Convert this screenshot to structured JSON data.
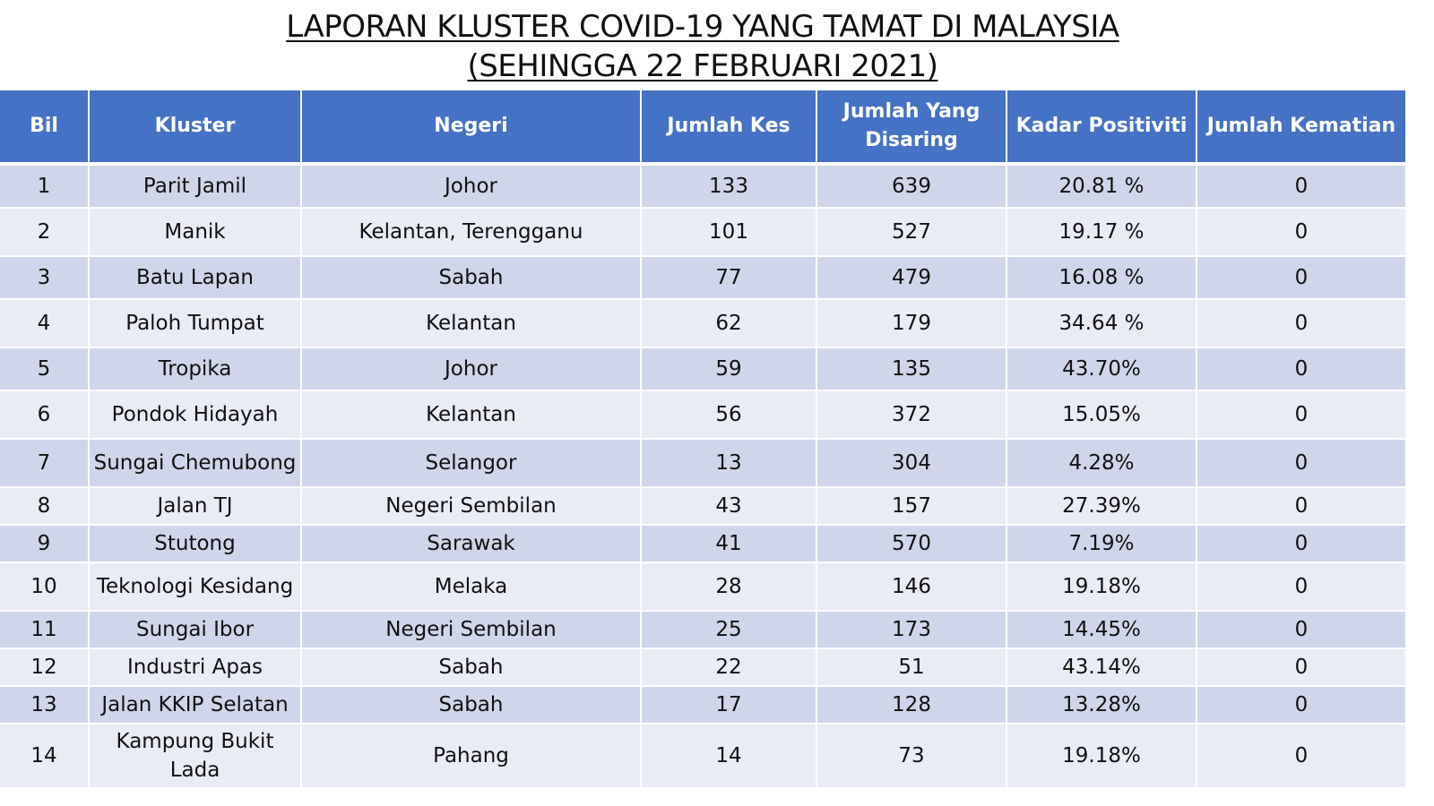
{
  "title": {
    "line1": "LAPORAN KLUSTER COVID-19 YANG TAMAT DI MALAYSIA",
    "line2": "(SEHINGGA  22 FEBRUARI 2021)"
  },
  "table": {
    "headers": {
      "bil": "Bil",
      "kluster": "Kluster",
      "negeri": "Negeri",
      "jumlah_kes": "Jumlah Kes",
      "jumlah_disaring_line1": "Jumlah Yang",
      "jumlah_disaring_line2": "Disaring",
      "kadar_positiviti": "Kadar Positiviti",
      "jumlah_kematian": "Jumlah Kematian"
    },
    "rows": [
      {
        "bil": "1",
        "kluster": "Parit Jamil",
        "negeri": "Johor",
        "kes": "133",
        "disaring": "639",
        "positiviti": "20.81 %",
        "kematian": "0"
      },
      {
        "bil": "2",
        "kluster": "Manik",
        "negeri": "Kelantan, Terengganu",
        "kes": "101",
        "disaring": "527",
        "positiviti": "19.17 %",
        "kematian": "0"
      },
      {
        "bil": "3",
        "kluster": "Batu Lapan",
        "negeri": "Sabah",
        "kes": "77",
        "disaring": "479",
        "positiviti": "16.08 %",
        "kematian": "0"
      },
      {
        "bil": "4",
        "kluster": "Paloh Tumpat",
        "negeri": "Kelantan",
        "kes": "62",
        "disaring": "179",
        "positiviti": "34.64 %",
        "kematian": "0"
      },
      {
        "bil": "5",
        "kluster": "Tropika",
        "negeri": "Johor",
        "kes": "59",
        "disaring": "135",
        "positiviti": "43.70%",
        "kematian": "0"
      },
      {
        "bil": "6",
        "kluster": "Pondok Hidayah",
        "negeri": "Kelantan",
        "kes": "56",
        "disaring": "372",
        "positiviti": "15.05%",
        "kematian": "0"
      },
      {
        "bil": "7",
        "kluster": "Sungai Chemubong",
        "negeri": "Selangor",
        "kes": "13",
        "disaring": "304",
        "positiviti": "4.28%",
        "kematian": "0"
      },
      {
        "bil": "8",
        "kluster": "Jalan TJ",
        "negeri": "Negeri Sembilan",
        "kes": "43",
        "disaring": "157",
        "positiviti": "27.39%",
        "kematian": "0"
      },
      {
        "bil": "9",
        "kluster": "Stutong",
        "negeri": "Sarawak",
        "kes": "41",
        "disaring": "570",
        "positiviti": "7.19%",
        "kematian": "0"
      },
      {
        "bil": "10",
        "kluster": "Teknologi Kesidang",
        "negeri": "Melaka",
        "kes": "28",
        "disaring": "146",
        "positiviti": "19.18%",
        "kematian": "0"
      },
      {
        "bil": "11",
        "kluster": "Sungai Ibor",
        "negeri": "Negeri Sembilan",
        "kes": "25",
        "disaring": "173",
        "positiviti": "14.45%",
        "kematian": "0"
      },
      {
        "bil": "12",
        "kluster": "Industri Apas",
        "negeri": "Sabah",
        "kes": "22",
        "disaring": "51",
        "positiviti": "43.14%",
        "kematian": "0"
      },
      {
        "bil": "13",
        "kluster": "Jalan KKIP Selatan",
        "negeri": "Sabah",
        "kes": "17",
        "disaring": "128",
        "positiviti": "13.28%",
        "kematian": "0"
      },
      {
        "bil": "14",
        "kluster": "Kampung Bukit Lada",
        "negeri": "Pahang",
        "kes": "14",
        "disaring": "73",
        "positiviti": "19.18%",
        "kematian": "0"
      }
    ]
  },
  "colors": {
    "header_bg": "#4472c4",
    "row_odd_bg": "#cfd5ea",
    "row_even_bg": "#e9ebf5"
  }
}
